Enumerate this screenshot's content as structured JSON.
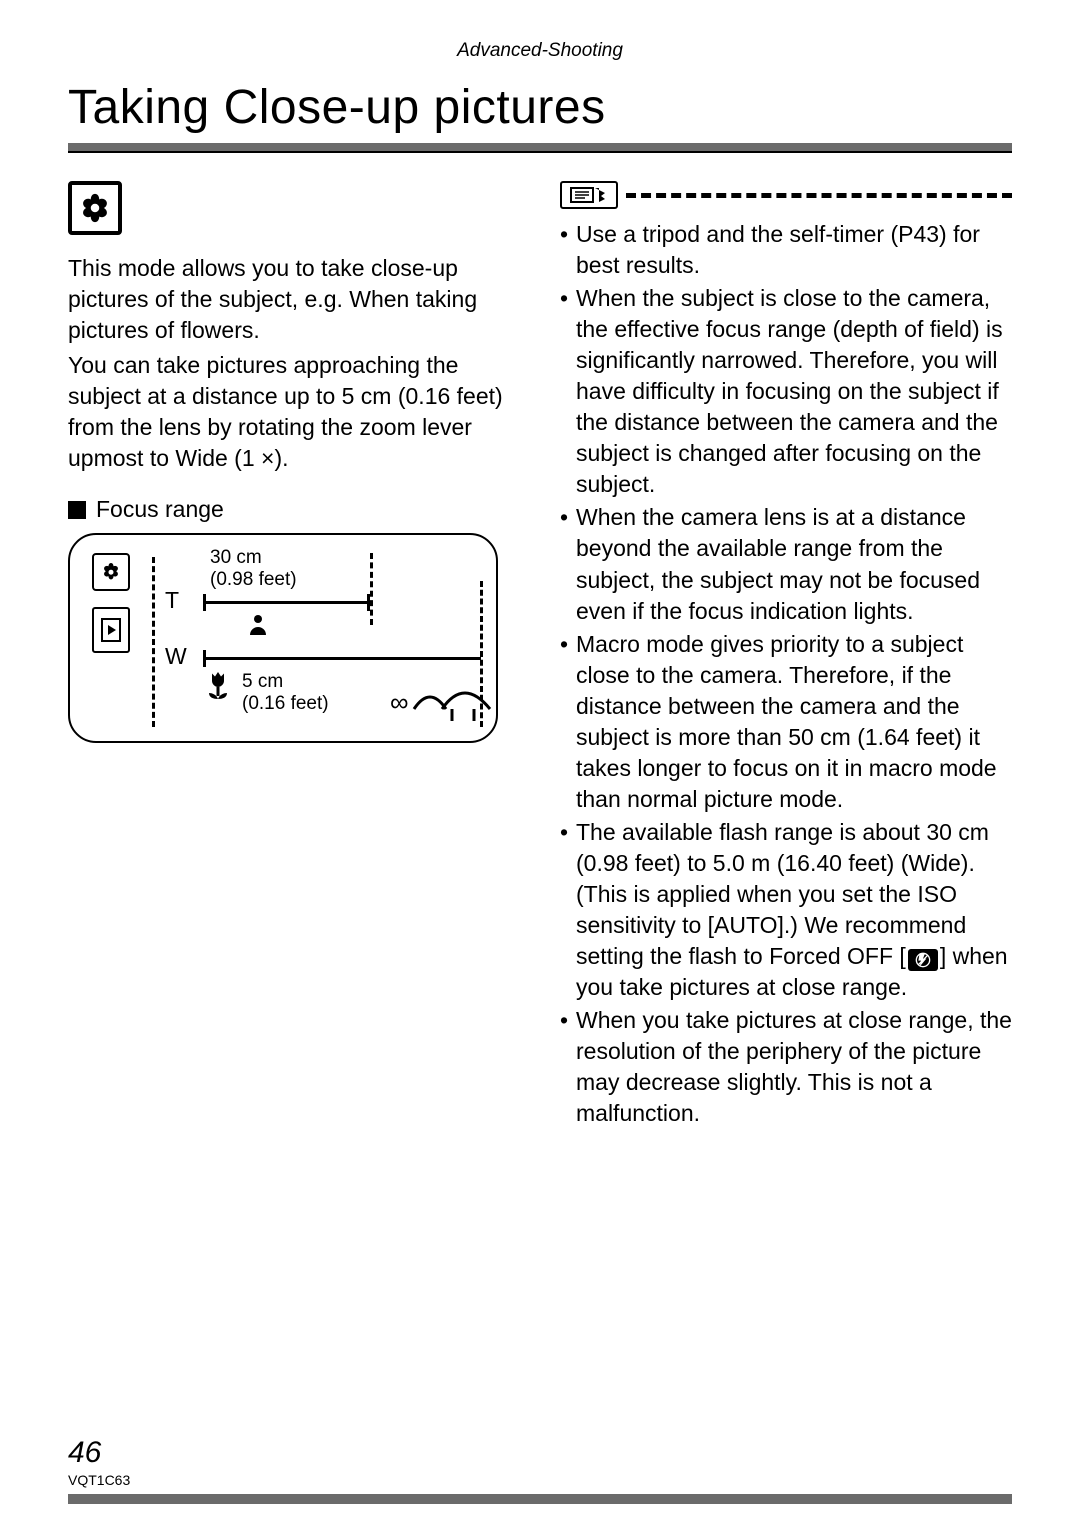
{
  "header": {
    "section": "Advanced-Shooting"
  },
  "title": "Taking Close-up pictures",
  "left": {
    "para1": "This mode allows you to take close-up pictures of the subject, e.g. When taking pictures of flowers.",
    "para2": "You can take pictures approaching the subject at a distance up to 5 cm (0.16 feet) from the lens by rotating the zoom lever upmost to Wide (1 ×).",
    "subheading": "Focus range",
    "diagram": {
      "t_label": "T",
      "w_label": "W",
      "t_distance_line1": "30 cm",
      "t_distance_line2": "(0.98 feet)",
      "w_distance_line1": "5 cm",
      "w_distance_line2": "(0.16 feet)",
      "infinity": "∞"
    }
  },
  "right": {
    "notes": [
      "Use a tripod and the self-timer (P43) for best results.",
      "When the subject is close to the camera, the effective focus range (depth of field) is significantly narrowed. Therefore, you will have difficulty in focusing on the subject if the distance between the camera and the subject is changed after focusing on the subject.",
      "When the camera lens is at a distance beyond the available range from the subject, the subject may not be focused even if the focus indication lights.",
      "Macro mode gives priority to a subject close to the camera. Therefore, if the distance between the camera and the subject is more than 50 cm (1.64 feet) it takes longer to focus on it in macro mode than normal picture mode.",
      "The available flash range is about 30 cm (0.98 feet) to 5.0 m (16.40 feet) (Wide). (This is applied when you set the ISO sensitivity to [AUTO].) We recommend setting the flash to Forced OFF [___ICON___] when you take pictures at close range.",
      "When you take pictures at close range, the resolution of the periphery of the picture may decrease slightly. This is not a malfunction."
    ]
  },
  "footer": {
    "page": "46",
    "code": "VQT1C63"
  },
  "colors": {
    "text": "#000000",
    "rule_fill": "#6b6b6b",
    "background": "#ffffff"
  },
  "typography": {
    "header_fontsize_pt": 14,
    "title_fontsize_pt": 36,
    "body_fontsize_pt": 17,
    "diagram_small_fontsize_pt": 14,
    "page_fontsize_pt": 22,
    "code_fontsize_pt": 10
  }
}
